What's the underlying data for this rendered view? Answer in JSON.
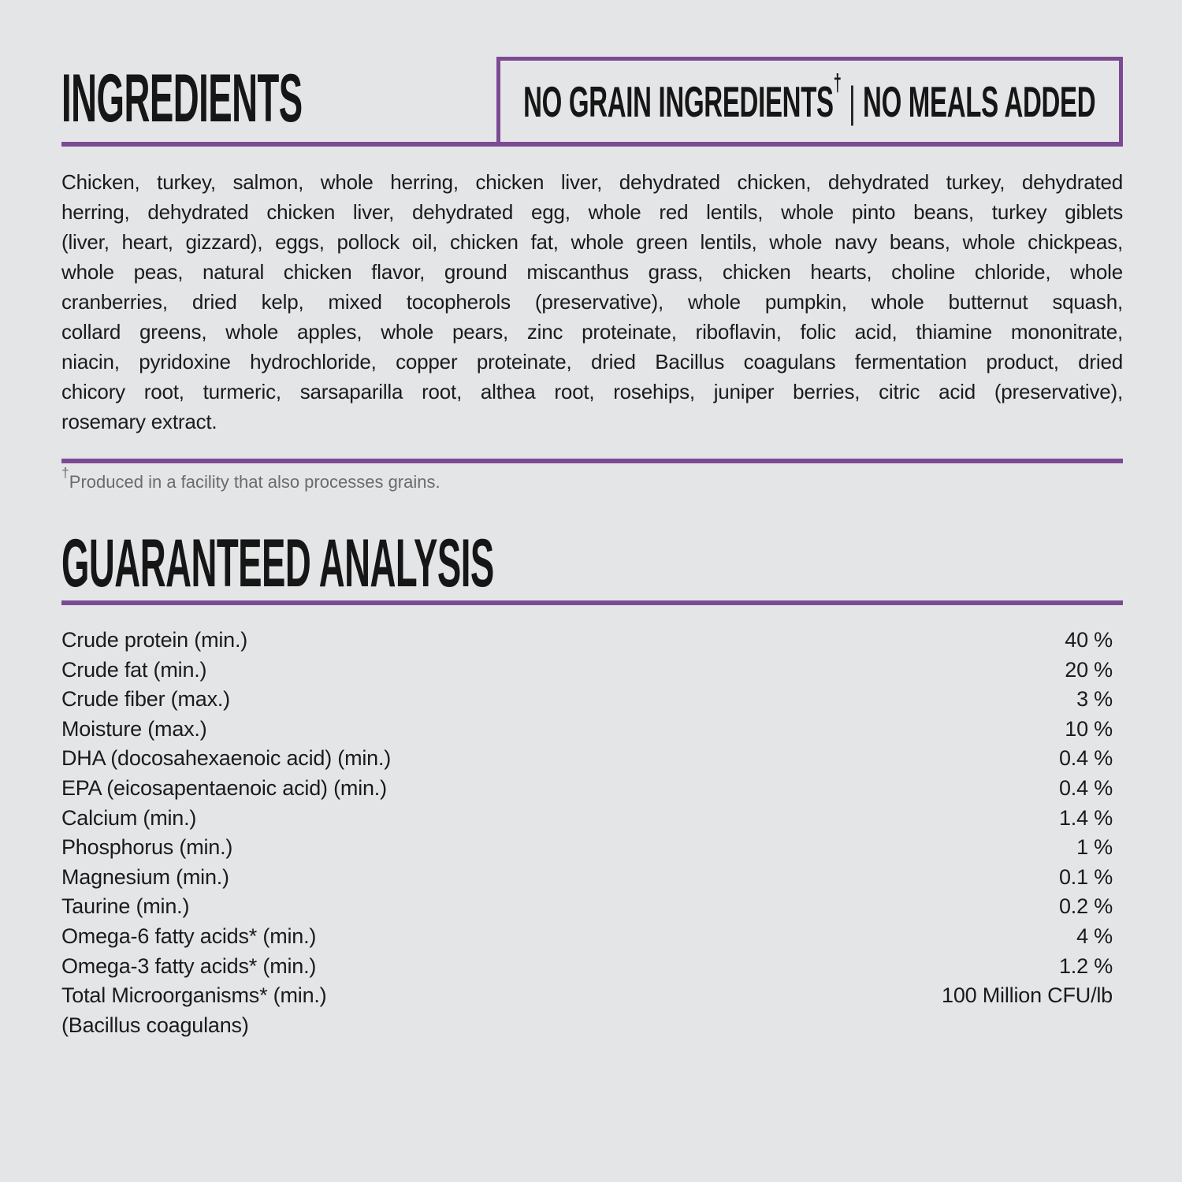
{
  "page": {
    "background_color": "#e4e5e7",
    "accent_color": "#7c4a92",
    "text_color": "#191919"
  },
  "ingredients_section": {
    "title": "INGREDIENTS",
    "badge": {
      "left": "NO GRAIN INGREDIENTS",
      "dagger": "†",
      "separator": "|",
      "right": "NO MEALS ADDED"
    },
    "lines": [
      "Chicken, turkey, salmon, whole herring, chicken liver, dehydrated chicken, dehydrated turkey, dehydrated",
      "herring, dehydrated chicken liver, dehydrated egg, whole red lentils, whole pinto beans, turkey giblets",
      "(liver, heart, gizzard), eggs, pollock oil, chicken fat, whole green lentils, whole navy beans, whole chickpeas,",
      "whole peas, natural chicken flavor, ground miscanthus grass, chicken hearts, choline chloride, whole",
      "cranberries, dried kelp, mixed tocopherols (preservative), whole pumpkin, whole butternut squash,",
      "collard greens, whole apples, whole pears, zinc proteinate, riboflavin, folic acid, thiamine mononitrate,",
      "niacin, pyridoxine hydrochloride, copper proteinate, dried Bacillus coagulans fermentation product, dried",
      "chicory root, turmeric, sarsaparilla root, althea root, rosehips, juniper berries, citric acid (preservative),",
      "rosemary extract."
    ],
    "footnote": {
      "dagger": "†",
      "text": "Produced in a facility that also processes grains."
    }
  },
  "guaranteed_analysis": {
    "title": "GUARANTEED ANALYSIS",
    "rows": [
      {
        "label": "Crude protein (min.)",
        "value": "40 %"
      },
      {
        "label": "Crude fat (min.)",
        "value": "20 %"
      },
      {
        "label": "Crude fiber (max.)",
        "value": "3 %"
      },
      {
        "label": "Moisture (max.)",
        "value": "10 %"
      },
      {
        "label": "DHA (docosahexaenoic acid) (min.)",
        "value": "0.4 %"
      },
      {
        "label": "EPA (eicosapentaenoic acid) (min.)",
        "value": "0.4 %"
      },
      {
        "label": "Calcium (min.)",
        "value": "1.4 %"
      },
      {
        "label": "Phosphorus (min.)",
        "value": "1 %"
      },
      {
        "label": "Magnesium (min.)",
        "value": "0.1 %"
      },
      {
        "label": "Taurine (min.)",
        "value": "0.2 %"
      },
      {
        "label": "Omega-6 fatty acids* (min.)",
        "value": "4 %"
      },
      {
        "label": "Omega-3 fatty acids* (min.)",
        "value": "1.2 %"
      },
      {
        "label": "Total Microorganisms* (min.)",
        "value": "100 Million CFU/lb"
      },
      {
        "label": "(Bacillus coagulans)",
        "value": ""
      }
    ]
  }
}
